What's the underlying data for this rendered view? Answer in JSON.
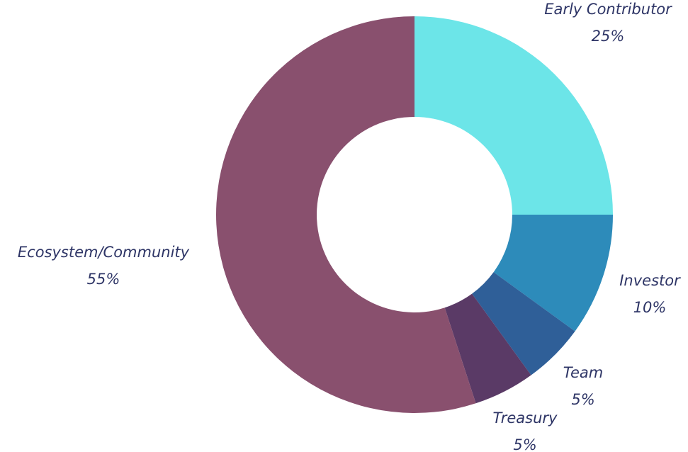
{
  "chart_data": {
    "type": "pie",
    "donut": true,
    "title": "",
    "slices": [
      {
        "label": "Early Contributor",
        "value": 25,
        "display": "25%",
        "color": "#6ce5e8"
      },
      {
        "label": "Investor",
        "value": 10,
        "display": "10%",
        "color": "#2d8bba"
      },
      {
        "label": "Team",
        "value": 5,
        "display": "5%",
        "color": "#2f5f98"
      },
      {
        "label": "Treasury",
        "value": 5,
        "display": "5%",
        "color": "#5a3a66"
      },
      {
        "label": "Ecosystem/Community",
        "value": 55,
        "display": "55%",
        "color": "#89506e"
      }
    ]
  }
}
